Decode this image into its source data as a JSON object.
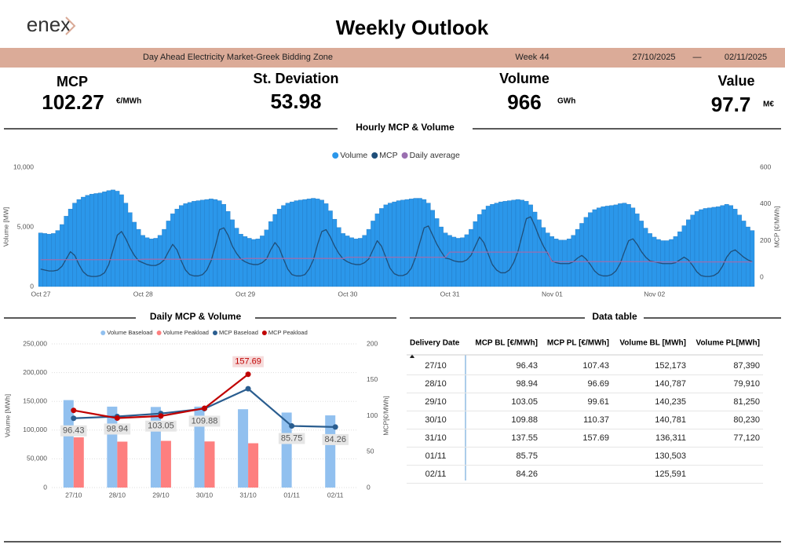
{
  "header": {
    "logo": "enex",
    "title": "Weekly Outlook",
    "band": {
      "market": "Day Ahead Electricity Market-Greek Bidding Zone",
      "week": "Week 44",
      "start": "27/10/2025",
      "separator": "—",
      "end": "02/11/2025"
    }
  },
  "kpis": [
    {
      "label": "MCP",
      "value": 102.27,
      "unit": "€/MWh"
    },
    {
      "label": "St. Deviation",
      "value": 53.98
    },
    {
      "label": "Volume",
      "value": 966,
      "unit": "GWh"
    },
    {
      "label": "Value",
      "value": 97.7,
      "unit": "M€"
    }
  ],
  "sections": [
    "Hourly MCP & Volume",
    "Daily MCP & Volume",
    "Data table"
  ],
  "chart_data": [
    {
      "type": "bar_line",
      "legend": "top",
      "grid": false,
      "y_label": "Volume [MW]",
      "y2_label": "MCP [€/MWh]",
      "ylim": [
        0,
        10000
      ],
      "yticks": [
        0,
        {
          "value": 5000,
          "label": "5,000"
        },
        {
          "value": 10000,
          "label": "10,000"
        }
      ],
      "y2lim": [
        -50,
        600
      ],
      "y2ticks": [
        0,
        200,
        400,
        600
      ],
      "categories": [
        "Oct 27",
        null,
        null,
        null,
        null,
        null,
        null,
        null,
        null,
        null,
        null,
        null,
        null,
        null,
        null,
        null,
        null,
        null,
        null,
        null,
        null,
        null,
        null,
        null,
        "Oct 28",
        null,
        null,
        null,
        null,
        null,
        null,
        null,
        null,
        null,
        null,
        null,
        null,
        null,
        null,
        null,
        null,
        null,
        null,
        null,
        null,
        null,
        null,
        null,
        "Oct 29",
        null,
        null,
        null,
        null,
        null,
        null,
        null,
        null,
        null,
        null,
        null,
        null,
        null,
        null,
        null,
        null,
        null,
        null,
        null,
        null,
        null,
        null,
        null,
        "Oct 30",
        null,
        null,
        null,
        null,
        null,
        null,
        null,
        null,
        null,
        null,
        null,
        null,
        null,
        null,
        null,
        null,
        null,
        null,
        null,
        null,
        null,
        null,
        null,
        "Oct 31",
        null,
        null,
        null,
        null,
        null,
        null,
        null,
        null,
        null,
        null,
        null,
        null,
        null,
        null,
        null,
        null,
        null,
        null,
        null,
        null,
        null,
        null,
        null,
        "Nov 01",
        null,
        null,
        null,
        null,
        null,
        null,
        null,
        null,
        null,
        null,
        null,
        null,
        null,
        null,
        null,
        null,
        null,
        null,
        null,
        null,
        null,
        null,
        null,
        "Nov 02",
        null,
        null,
        null,
        null,
        null,
        null,
        null,
        null,
        null,
        null,
        null,
        null,
        null,
        null,
        null,
        null,
        null,
        null,
        null,
        null,
        null,
        null,
        null
      ],
      "series": [
        {
          "name": "Volume",
          "kind": "bar",
          "color": "#2b97ea",
          "values": [
            4500,
            4450,
            4400,
            4450,
            4700,
            5200,
            5900,
            6500,
            7000,
            7300,
            7500,
            7650,
            7750,
            7800,
            7850,
            7950,
            8050,
            8100,
            8000,
            7700,
            7000,
            6200,
            5400,
            4800,
            4300,
            4100,
            4000,
            4050,
            4300,
            4800,
            5500,
            6100,
            6500,
            6800,
            6950,
            7050,
            7150,
            7200,
            7250,
            7300,
            7350,
            7300,
            7200,
            6900,
            6300,
            5600,
            4900,
            4400,
            4200,
            4050,
            3950,
            4000,
            4250,
            4750,
            5450,
            6050,
            6500,
            6800,
            7000,
            7100,
            7200,
            7250,
            7300,
            7350,
            7400,
            7350,
            7250,
            6950,
            6350,
            5650,
            4950,
            4450,
            4250,
            4100,
            4000,
            4050,
            4300,
            4800,
            5500,
            6100,
            6550,
            6850,
            7000,
            7100,
            7200,
            7250,
            7300,
            7350,
            7400,
            7400,
            7300,
            7000,
            6400,
            5700,
            5000,
            4500,
            4300,
            4150,
            4050,
            4100,
            4350,
            4800,
            5450,
            6050,
            6450,
            6750,
            6900,
            7000,
            7100,
            7150,
            7200,
            7250,
            7300,
            7250,
            7150,
            6850,
            6250,
            5600,
            4950,
            4500,
            4200,
            4000,
            3900,
            3900,
            4000,
            4300,
            4800,
            5300,
            5800,
            6200,
            6450,
            6600,
            6700,
            6750,
            6800,
            6850,
            6950,
            7000,
            6900,
            6600,
            6100,
            5500,
            4900,
            4450,
            4150,
            3950,
            3850,
            3850,
            3950,
            4200,
            4600,
            5100,
            5600,
            6000,
            6300,
            6450,
            6550,
            6600,
            6650,
            6700,
            6800,
            6900,
            6800,
            6500,
            6000,
            5500,
            5000,
            4700
          ]
        },
        {
          "name": "MCP",
          "kind": "line",
          "axis": "y2",
          "color": "#1f4e79",
          "values": [
            45,
            40,
            35,
            35,
            40,
            60,
            100,
            140,
            120,
            70,
            30,
            10,
            5,
            5,
            10,
            25,
            70,
            150,
            230,
            250,
            210,
            160,
            120,
            90,
            80,
            70,
            65,
            65,
            75,
            95,
            140,
            180,
            150,
            90,
            40,
            15,
            8,
            8,
            15,
            40,
            90,
            170,
            260,
            270,
            230,
            170,
            130,
            100,
            85,
            75,
            70,
            70,
            80,
            100,
            150,
            190,
            160,
            100,
            45,
            15,
            8,
            8,
            15,
            45,
            95,
            180,
            250,
            260,
            220,
            170,
            130,
            100,
            85,
            75,
            70,
            70,
            80,
            100,
            150,
            200,
            170,
            110,
            50,
            20,
            10,
            10,
            20,
            50,
            110,
            190,
            270,
            280,
            230,
            180,
            140,
            105,
            100,
            90,
            85,
            85,
            95,
            120,
            170,
            220,
            190,
            130,
            70,
            40,
            25,
            25,
            40,
            80,
            140,
            230,
            320,
            330,
            280,
            220,
            170,
            130,
            90,
            80,
            75,
            75,
            75,
            85,
            105,
            120,
            100,
            70,
            35,
            15,
            8,
            8,
            15,
            35,
            75,
            140,
            200,
            210,
            180,
            140,
            110,
            90,
            85,
            80,
            75,
            75,
            75,
            80,
            95,
            110,
            95,
            65,
            30,
            10,
            5,
            5,
            10,
            25,
            60,
            110,
            140,
            150,
            130,
            110,
            95,
            85
          ]
        },
        {
          "name": "Daily average",
          "kind": "line",
          "axis": "y2",
          "color": "#9a6fb0",
          "values": [
            96.43,
            96.43,
            96.43,
            96.43,
            96.43,
            96.43,
            96.43,
            96.43,
            96.43,
            96.43,
            96.43,
            96.43,
            96.43,
            96.43,
            96.43,
            96.43,
            96.43,
            96.43,
            96.43,
            96.43,
            96.43,
            96.43,
            96.43,
            96.43,
            98.94,
            98.94,
            98.94,
            98.94,
            98.94,
            98.94,
            98.94,
            98.94,
            98.94,
            98.94,
            98.94,
            98.94,
            98.94,
            98.94,
            98.94,
            98.94,
            98.94,
            98.94,
            98.94,
            98.94,
            98.94,
            98.94,
            98.94,
            98.94,
            103.05,
            103.05,
            103.05,
            103.05,
            103.05,
            103.05,
            103.05,
            103.05,
            103.05,
            103.05,
            103.05,
            103.05,
            103.05,
            103.05,
            103.05,
            103.05,
            103.05,
            103.05,
            103.05,
            103.05,
            103.05,
            103.05,
            103.05,
            103.05,
            109.88,
            109.88,
            109.88,
            109.88,
            109.88,
            109.88,
            109.88,
            109.88,
            109.88,
            109.88,
            109.88,
            109.88,
            109.88,
            109.88,
            109.88,
            109.88,
            109.88,
            109.88,
            109.88,
            109.88,
            109.88,
            109.88,
            109.88,
            109.88,
            137.55,
            137.55,
            137.55,
            137.55,
            137.55,
            137.55,
            137.55,
            137.55,
            137.55,
            137.55,
            137.55,
            137.55,
            137.55,
            137.55,
            137.55,
            137.55,
            137.55,
            137.55,
            137.55,
            137.55,
            137.55,
            137.55,
            137.55,
            137.55,
            85.75,
            85.75,
            85.75,
            85.75,
            85.75,
            85.75,
            85.75,
            85.75,
            85.75,
            85.75,
            85.75,
            85.75,
            85.75,
            85.75,
            85.75,
            85.75,
            85.75,
            85.75,
            85.75,
            85.75,
            85.75,
            85.75,
            85.75,
            85.75,
            84.26,
            84.26,
            84.26,
            84.26,
            84.26,
            84.26,
            84.26,
            84.26,
            84.26,
            84.26,
            84.26,
            84.26,
            84.26,
            84.26,
            84.26,
            84.26,
            84.26,
            84.26,
            84.26,
            84.26,
            84.26,
            84.26,
            84.26,
            84.26
          ]
        }
      ]
    },
    {
      "type": "bar_line",
      "legend": "top",
      "grid": true,
      "y_label": "Volume [MWh]",
      "y2_label": "MCP[€/MWh]",
      "ylim": [
        0,
        250000
      ],
      "yticks": [
        0,
        {
          "value": 50000,
          "label": "50,000"
        },
        {
          "value": 100000,
          "label": "100,000"
        },
        {
          "value": 150000,
          "label": "150,000"
        },
        {
          "value": 200000,
          "label": "200,000"
        },
        {
          "value": 250000,
          "label": "250,000"
        }
      ],
      "y2lim": [
        0,
        200
      ],
      "y2ticks": [
        0,
        50,
        100,
        150,
        200
      ],
      "categories": [
        "27/10",
        "28/10",
        "29/10",
        "30/10",
        "31/10",
        "01/11",
        "02/11"
      ],
      "series": [
        {
          "name": "Volume Baseload",
          "kind": "bar",
          "color": "#91c0ef",
          "values": [
            152173,
            140787,
            140235,
            140781,
            136311,
            130503,
            125591
          ]
        },
        {
          "name": "Volume Peakload",
          "kind": "bar",
          "color": "#fd7f7f",
          "values": [
            87390,
            79910,
            81250,
            80230,
            77120,
            null,
            null
          ]
        },
        {
          "name": "MCP Baseload",
          "kind": "line",
          "axis": "y2",
          "color": "#2a5d8f",
          "values": [
            96.43,
            98.94,
            103.05,
            109.88,
            137.55,
            85.75,
            84.26
          ],
          "value_labels": [
            "96.43",
            "98.94",
            "103.05",
            "109.88",
            null,
            "85.75",
            "84.26"
          ]
        },
        {
          "name": "MCP Peakload",
          "kind": "line",
          "axis": "y2",
          "color": "#c00000",
          "values": [
            107.43,
            96.69,
            99.61,
            110.37,
            157.69,
            null,
            null
          ],
          "value_labels": [
            null,
            null,
            null,
            null,
            "157.69",
            null,
            null
          ]
        }
      ]
    }
  ],
  "table": {
    "columns": [
      "Delivery Date",
      "MCP BL [€/MWh]",
      "MCP PL [€/MWh]",
      "Volume BL [MWh]",
      "Volume PL[MWh]"
    ],
    "rows": [
      [
        "27/10",
        "96.43",
        "107.43",
        "152,173",
        "87,390"
      ],
      [
        "28/10",
        "98.94",
        "96.69",
        "140,787",
        "79,910"
      ],
      [
        "29/10",
        "103.05",
        "99.61",
        "140,235",
        "81,250"
      ],
      [
        "30/10",
        "109.88",
        "110.37",
        "140,781",
        "80,230"
      ],
      [
        "31/10",
        "137.55",
        "157.69",
        "136,311",
        "77,120"
      ],
      [
        "01/11",
        "85.75",
        null,
        "130,503",
        null
      ],
      [
        "02/11",
        "84.26",
        null,
        "125,591",
        null
      ]
    ]
  }
}
